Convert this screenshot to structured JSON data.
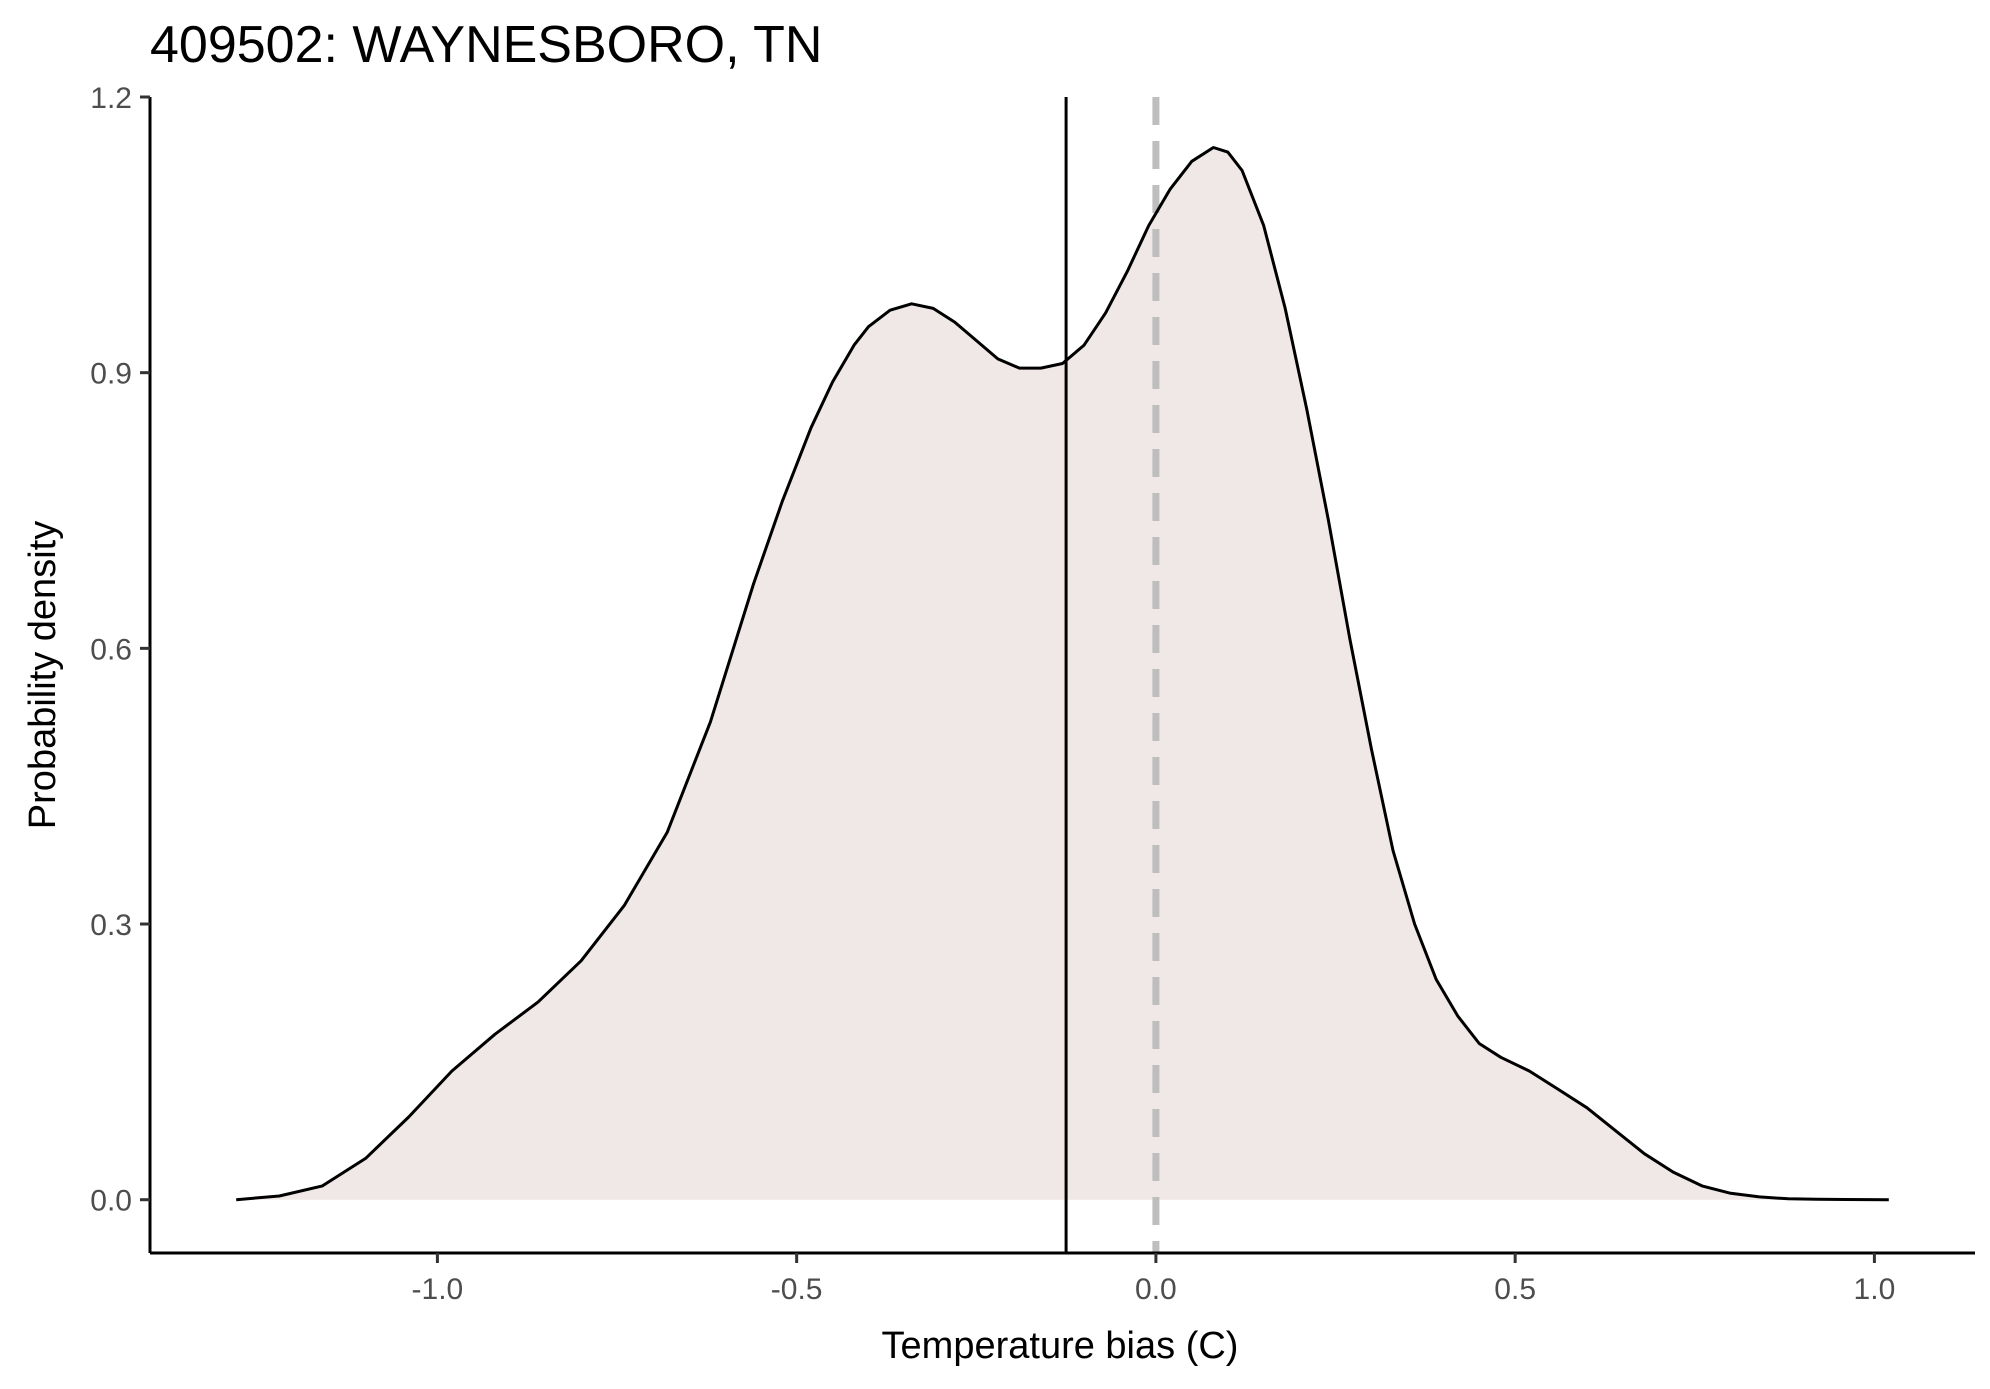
{
  "chart_data": {
    "type": "area",
    "title": "409502: WAYNESBORO, TN",
    "xlabel": "Temperature bias (C)",
    "ylabel": "Probability density",
    "xlim": [
      -1.4,
      1.14
    ],
    "ylim": [
      -0.058,
      1.2
    ],
    "x_ticks": [
      -1.0,
      -0.5,
      0.0,
      0.5,
      1.0
    ],
    "x_tick_labels": [
      "-1.0",
      "-0.5",
      "0.0",
      "0.5",
      "1.0"
    ],
    "y_ticks": [
      0.0,
      0.3,
      0.6,
      0.9,
      1.2
    ],
    "y_tick_labels": [
      "0.0",
      "0.3",
      "0.6",
      "0.9",
      "1.2"
    ],
    "grid": false,
    "series": [
      {
        "x": [
          -1.28,
          -1.22,
          -1.16,
          -1.1,
          -1.04,
          -0.98,
          -0.92,
          -0.86,
          -0.8,
          -0.74,
          -0.68,
          -0.62,
          -0.56,
          -0.52,
          -0.48,
          -0.45,
          -0.42,
          -0.4,
          -0.37,
          -0.34,
          -0.31,
          -0.28,
          -0.25,
          -0.22,
          -0.19,
          -0.16,
          -0.13,
          -0.1,
          -0.07,
          -0.04,
          -0.01,
          0.02,
          0.05,
          0.08,
          0.1,
          0.12,
          0.15,
          0.18,
          0.21,
          0.24,
          0.27,
          0.3,
          0.33,
          0.36,
          0.39,
          0.42,
          0.45,
          0.48,
          0.52,
          0.56,
          0.6,
          0.64,
          0.68,
          0.72,
          0.76,
          0.8,
          0.84,
          0.88,
          0.92,
          0.96,
          1.02
        ],
        "y": [
          0.0,
          0.004,
          0.015,
          0.045,
          0.09,
          0.14,
          0.18,
          0.215,
          0.26,
          0.32,
          0.4,
          0.52,
          0.67,
          0.76,
          0.84,
          0.89,
          0.93,
          0.95,
          0.968,
          0.975,
          0.97,
          0.955,
          0.935,
          0.915,
          0.905,
          0.905,
          0.91,
          0.93,
          0.965,
          1.01,
          1.06,
          1.1,
          1.13,
          1.145,
          1.14,
          1.12,
          1.06,
          0.97,
          0.86,
          0.74,
          0.61,
          0.49,
          0.38,
          0.3,
          0.24,
          0.2,
          0.17,
          0.155,
          0.14,
          0.12,
          0.1,
          0.075,
          0.05,
          0.03,
          0.015,
          0.007,
          0.003,
          0.001,
          0.0005,
          0.0002,
          0.0
        ]
      }
    ],
    "reference_lines": [
      {
        "orientation": "vertical",
        "x": -0.125,
        "style": "solid",
        "color": "#000000"
      },
      {
        "orientation": "vertical",
        "x": 0.0,
        "style": "dashed",
        "color": "#bebebe"
      }
    ],
    "colors": {
      "fill": "#efe8e6",
      "line": "#000000",
      "axis": "#000000",
      "tick_text": "#4d4d4d"
    }
  }
}
